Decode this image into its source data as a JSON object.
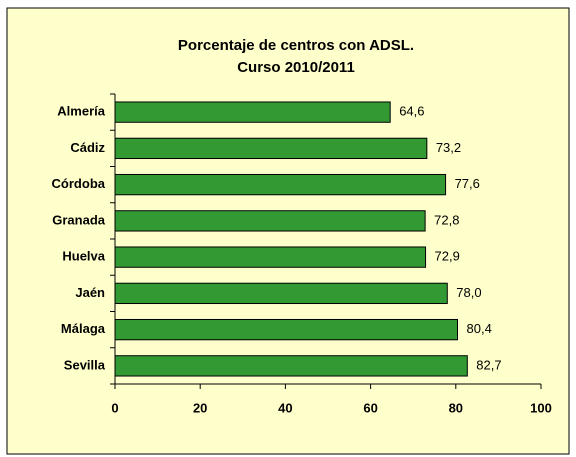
{
  "chart_data": {
    "type": "hbar",
    "title": [
      "Porcentaje de centros con ADSL.",
      "Curso 2010/2011"
    ],
    "categories": [
      "Almería",
      "Cádiz",
      "Córdoba",
      "Granada",
      "Huelva",
      "Jaén",
      "Málaga",
      "Sevilla"
    ],
    "values": [
      64.6,
      73.2,
      77.6,
      72.8,
      72.9,
      78.0,
      80.4,
      82.7
    ],
    "value_labels": [
      "64,6",
      "73,2",
      "77,6",
      "72,8",
      "72,9",
      "78,0",
      "80,4",
      "82,7"
    ],
    "color": "#339933",
    "xlim": [
      0,
      100
    ],
    "xticks": [
      0,
      20,
      40,
      60,
      80,
      100
    ],
    "grid": false
  }
}
